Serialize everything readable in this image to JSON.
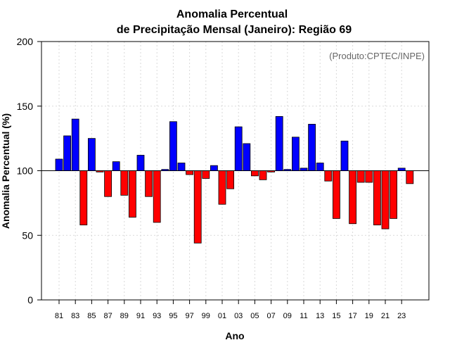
{
  "colors": {
    "positive": "#0000ff",
    "negative": "#ff0000",
    "grid": "#d9d9d9",
    "reference": "#000000"
  },
  "chart_data": {
    "type": "bar",
    "title": "Anomalia Percentual",
    "subtitle": "de Precipitação Mensal (Janeiro): Região 69",
    "credit": "(Produto:CPTEC/INPE)",
    "xlabel": "Ano",
    "ylabel": "Anomalia Percentual (%)",
    "ylim": [
      0,
      200
    ],
    "yticks": [
      0,
      50,
      100,
      150,
      200
    ],
    "baseline": 100,
    "grid": true,
    "categories": [
      "81",
      "82",
      "83",
      "84",
      "85",
      "86",
      "87",
      "88",
      "89",
      "90",
      "91",
      "92",
      "93",
      "94",
      "95",
      "96",
      "97",
      "98",
      "99",
      "00",
      "01",
      "02",
      "03",
      "04",
      "05",
      "06",
      "07",
      "08",
      "09",
      "10",
      "11",
      "12",
      "13",
      "14",
      "15",
      "16",
      "17",
      "18",
      "19",
      "20",
      "21",
      "22",
      "23",
      "24"
    ],
    "tick_labels": [
      "81",
      "83",
      "85",
      "87",
      "89",
      "91",
      "93",
      "95",
      "97",
      "99",
      "01",
      "03",
      "05",
      "07",
      "09",
      "11",
      "13",
      "15",
      "17",
      "19",
      "21",
      "23"
    ],
    "values": [
      109,
      127,
      140,
      58,
      125,
      99,
      80,
      107,
      81,
      64,
      112,
      80,
      60,
      101,
      138,
      106,
      97,
      44,
      94,
      104,
      74,
      86,
      134,
      121,
      96,
      93,
      99,
      142,
      101,
      126,
      102,
      136,
      106,
      92,
      63,
      123,
      59,
      91,
      91,
      58,
      55,
      63,
      102,
      90
    ]
  }
}
